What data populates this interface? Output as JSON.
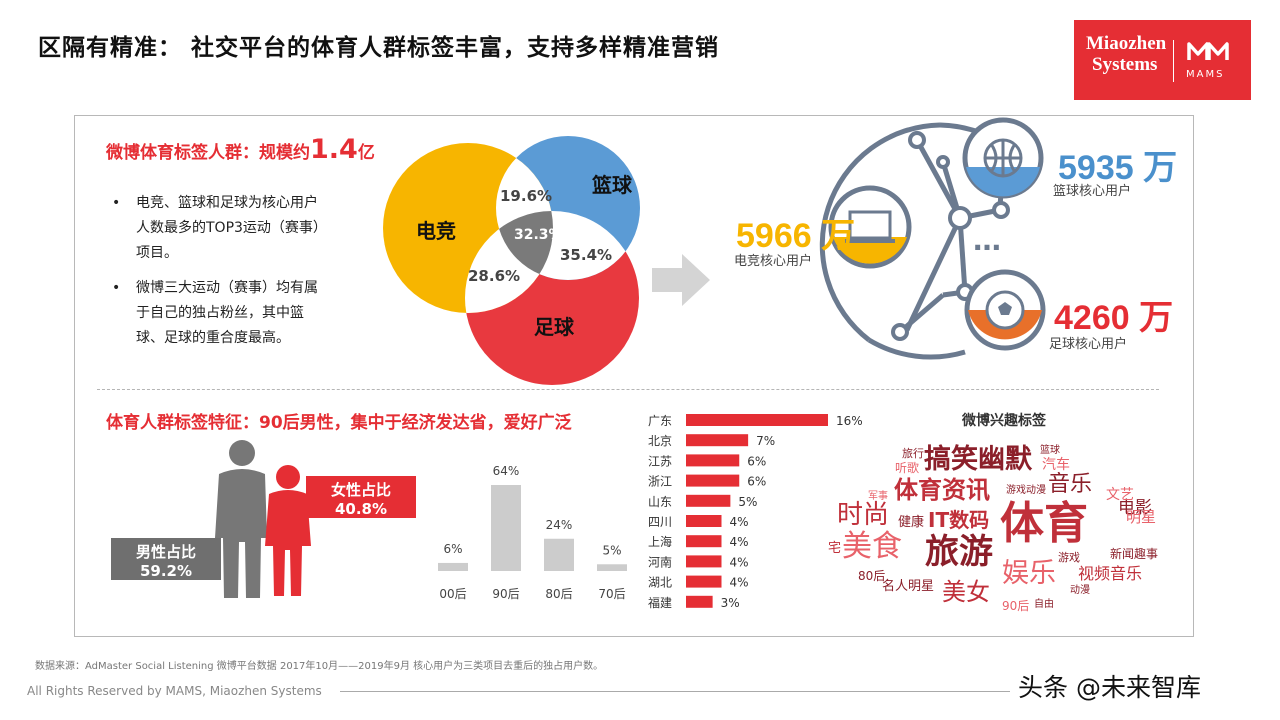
{
  "title": "区隔有精准： 社交平台的体育人群标签丰富，支持多样精准营销",
  "logo": {
    "line1": "Miaozhen",
    "line2": "Systems",
    "brand": "MAMS",
    "color": "#e52e34"
  },
  "weibo_section": {
    "title_prefix": "微博体育标签人群：规模约",
    "title_number": "1.4",
    "title_unit": "亿",
    "bullets": [
      [
        "电竞、篮球和足球为核心用户",
        "人数最多的TOP3运动（赛事）",
        "项目。"
      ],
      [
        "微博三大运动（赛事）均有属",
        "于自己的独占粉丝，其中篮",
        "球、足球的重合度最高。"
      ]
    ]
  },
  "venn": {
    "sets": [
      {
        "name": "电竞",
        "color": "#f7b500"
      },
      {
        "name": "篮球",
        "color": "#5b9bd5"
      },
      {
        "name": "足球",
        "color": "#e8393f"
      }
    ],
    "overlaps": [
      {
        "label": "19.6%",
        "between": [
          "电竞",
          "篮球"
        ]
      },
      {
        "label": "28.6%",
        "between": [
          "电竞",
          "足球"
        ]
      },
      {
        "label": "35.4%",
        "between": [
          "篮球",
          "足球"
        ]
      },
      {
        "label": "32.3%",
        "between": [
          "电竞",
          "篮球",
          "足球"
        ]
      }
    ]
  },
  "core_users": {
    "esports": {
      "number": "5966 万",
      "label": "电竞核心用户",
      "color": "#f7b500"
    },
    "basketball": {
      "number": "5935 万",
      "label": "篮球核心用户",
      "color": "#4a90cc"
    },
    "football": {
      "number": "4260 万",
      "label": "足球核心用户",
      "color": "#e8702a"
    },
    "more": "…"
  },
  "feature_section": {
    "title": "体育人群标签特征：90后男性，集中于经济发达省，爱好广泛",
    "female": {
      "label": "女性占比",
      "value": "40.8%"
    },
    "male": {
      "label": "男性占比",
      "value": "59.2%"
    }
  },
  "chart_data": [
    {
      "type": "bar",
      "categories": [
        "00后",
        "90后",
        "80后",
        "70后"
      ],
      "values": [
        6,
        64,
        24,
        5
      ],
      "value_labels": [
        "6%",
        "64%",
        "24%",
        "5%"
      ],
      "ylim": [
        0,
        64
      ],
      "color": "#cccccc"
    },
    {
      "type": "bar",
      "orientation": "horizontal",
      "categories": [
        "广东",
        "北京",
        "江苏",
        "浙江",
        "山东",
        "四川",
        "上海",
        "河南",
        "湖北",
        "福建"
      ],
      "values": [
        16,
        7,
        6,
        6,
        5,
        4,
        4,
        4,
        4,
        3
      ],
      "value_labels": [
        "16%",
        "7%",
        "6%",
        "6%",
        "5%",
        "4%",
        "4%",
        "4%",
        "4%",
        "3%"
      ],
      "xlim": [
        0,
        16
      ],
      "color": "#e52e34"
    }
  ],
  "word_cloud": {
    "title": "微博兴趣标签",
    "tags": [
      {
        "text": "体育",
        "color": "#c0303a"
      },
      {
        "text": "旅游",
        "color": "#8b1f2a"
      },
      {
        "text": "美食",
        "color": "#e8626a"
      },
      {
        "text": "搞笑幽默",
        "color": "#8b1f2a"
      },
      {
        "text": "体育资讯",
        "color": "#c0303a"
      },
      {
        "text": "时尚",
        "color": "#c0303a"
      },
      {
        "text": "娱乐",
        "color": "#e8626a"
      },
      {
        "text": "美女",
        "color": "#c0303a"
      },
      {
        "text": "音乐",
        "color": "#8b1f2a"
      },
      {
        "text": "IT数码",
        "color": "#c0303a"
      },
      {
        "text": "视频音乐",
        "color": "#c0303a"
      },
      {
        "text": "电影",
        "color": "#8b1f2a"
      },
      {
        "text": "明星",
        "color": "#e8626a"
      },
      {
        "text": "文艺",
        "color": "#e8626a"
      },
      {
        "text": "汽车",
        "color": "#e8626a"
      },
      {
        "text": "新闻趣事",
        "color": "#8b1f2a"
      },
      {
        "text": "名人明星",
        "color": "#8b1f2a"
      },
      {
        "text": "健康",
        "color": "#8b1f2a"
      },
      {
        "text": "宅",
        "color": "#c0303a"
      },
      {
        "text": "听歌",
        "color": "#e8626a"
      },
      {
        "text": "旅行",
        "color": "#8b1f2a"
      },
      {
        "text": "80后",
        "color": "#8b1f2a"
      },
      {
        "text": "90后",
        "color": "#e8626a"
      },
      {
        "text": "游戏",
        "color": "#8b1f2a"
      },
      {
        "text": "动漫",
        "color": "#8b1f2a"
      },
      {
        "text": "自由",
        "color": "#8b1f2a"
      },
      {
        "text": "篮球",
        "color": "#8b1f2a"
      },
      {
        "text": "游戏动漫",
        "color": "#8b1f2a"
      },
      {
        "text": "军事",
        "color": "#e8626a"
      }
    ]
  },
  "footer": {
    "source": "数据来源：AdMaster Social Listening  微博平台数据   2017年10月——2019年9月   核心用户为三类项目去重后的独占用户数。",
    "rights": "All Rights Reserved by MAMS, Miaozhen Systems"
  },
  "watermark": "头条 @未来智库"
}
